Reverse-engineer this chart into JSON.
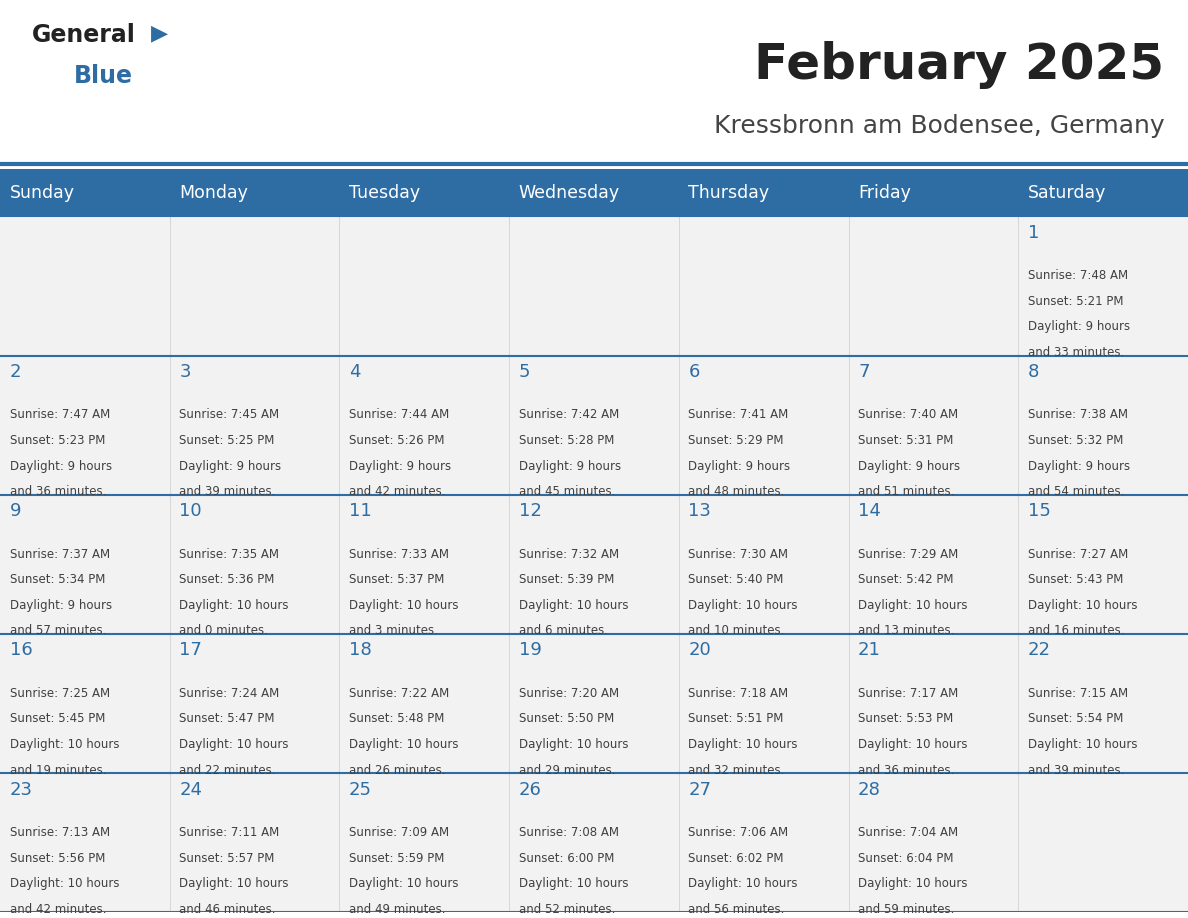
{
  "title": "February 2025",
  "subtitle": "Kressbronn am Bodensee, Germany",
  "header_color": "#2E6DA4",
  "header_text_color": "#FFFFFF",
  "day_names": [
    "Sunday",
    "Monday",
    "Tuesday",
    "Wednesday",
    "Thursday",
    "Friday",
    "Saturday"
  ],
  "background_color": "#FFFFFF",
  "cell_bg_color": "#F2F2F2",
  "separator_color": "#2E6DA4",
  "day_number_color": "#2E6DA4",
  "info_text_color": "#404040",
  "calendar_data": [
    [
      null,
      null,
      null,
      null,
      null,
      null,
      {
        "day": 1,
        "sunrise": "7:48 AM",
        "sunset": "5:21 PM",
        "daylight": "9 hours and 33 minutes."
      }
    ],
    [
      {
        "day": 2,
        "sunrise": "7:47 AM",
        "sunset": "5:23 PM",
        "daylight": "9 hours and 36 minutes."
      },
      {
        "day": 3,
        "sunrise": "7:45 AM",
        "sunset": "5:25 PM",
        "daylight": "9 hours and 39 minutes."
      },
      {
        "day": 4,
        "sunrise": "7:44 AM",
        "sunset": "5:26 PM",
        "daylight": "9 hours and 42 minutes."
      },
      {
        "day": 5,
        "sunrise": "7:42 AM",
        "sunset": "5:28 PM",
        "daylight": "9 hours and 45 minutes."
      },
      {
        "day": 6,
        "sunrise": "7:41 AM",
        "sunset": "5:29 PM",
        "daylight": "9 hours and 48 minutes."
      },
      {
        "day": 7,
        "sunrise": "7:40 AM",
        "sunset": "5:31 PM",
        "daylight": "9 hours and 51 minutes."
      },
      {
        "day": 8,
        "sunrise": "7:38 AM",
        "sunset": "5:32 PM",
        "daylight": "9 hours and 54 minutes."
      }
    ],
    [
      {
        "day": 9,
        "sunrise": "7:37 AM",
        "sunset": "5:34 PM",
        "daylight": "9 hours and 57 minutes."
      },
      {
        "day": 10,
        "sunrise": "7:35 AM",
        "sunset": "5:36 PM",
        "daylight": "10 hours and 0 minutes."
      },
      {
        "day": 11,
        "sunrise": "7:33 AM",
        "sunset": "5:37 PM",
        "daylight": "10 hours and 3 minutes."
      },
      {
        "day": 12,
        "sunrise": "7:32 AM",
        "sunset": "5:39 PM",
        "daylight": "10 hours and 6 minutes."
      },
      {
        "day": 13,
        "sunrise": "7:30 AM",
        "sunset": "5:40 PM",
        "daylight": "10 hours and 10 minutes."
      },
      {
        "day": 14,
        "sunrise": "7:29 AM",
        "sunset": "5:42 PM",
        "daylight": "10 hours and 13 minutes."
      },
      {
        "day": 15,
        "sunrise": "7:27 AM",
        "sunset": "5:43 PM",
        "daylight": "10 hours and 16 minutes."
      }
    ],
    [
      {
        "day": 16,
        "sunrise": "7:25 AM",
        "sunset": "5:45 PM",
        "daylight": "10 hours and 19 minutes."
      },
      {
        "day": 17,
        "sunrise": "7:24 AM",
        "sunset": "5:47 PM",
        "daylight": "10 hours and 22 minutes."
      },
      {
        "day": 18,
        "sunrise": "7:22 AM",
        "sunset": "5:48 PM",
        "daylight": "10 hours and 26 minutes."
      },
      {
        "day": 19,
        "sunrise": "7:20 AM",
        "sunset": "5:50 PM",
        "daylight": "10 hours and 29 minutes."
      },
      {
        "day": 20,
        "sunrise": "7:18 AM",
        "sunset": "5:51 PM",
        "daylight": "10 hours and 32 minutes."
      },
      {
        "day": 21,
        "sunrise": "7:17 AM",
        "sunset": "5:53 PM",
        "daylight": "10 hours and 36 minutes."
      },
      {
        "day": 22,
        "sunrise": "7:15 AM",
        "sunset": "5:54 PM",
        "daylight": "10 hours and 39 minutes."
      }
    ],
    [
      {
        "day": 23,
        "sunrise": "7:13 AM",
        "sunset": "5:56 PM",
        "daylight": "10 hours and 42 minutes."
      },
      {
        "day": 24,
        "sunrise": "7:11 AM",
        "sunset": "5:57 PM",
        "daylight": "10 hours and 46 minutes."
      },
      {
        "day": 25,
        "sunrise": "7:09 AM",
        "sunset": "5:59 PM",
        "daylight": "10 hours and 49 minutes."
      },
      {
        "day": 26,
        "sunrise": "7:08 AM",
        "sunset": "6:00 PM",
        "daylight": "10 hours and 52 minutes."
      },
      {
        "day": 27,
        "sunrise": "7:06 AM",
        "sunset": "6:02 PM",
        "daylight": "10 hours and 56 minutes."
      },
      {
        "day": 28,
        "sunrise": "7:04 AM",
        "sunset": "6:04 PM",
        "daylight": "10 hours and 59 minutes."
      },
      null
    ]
  ],
  "logo_triangle_color": "#2E6DA4"
}
